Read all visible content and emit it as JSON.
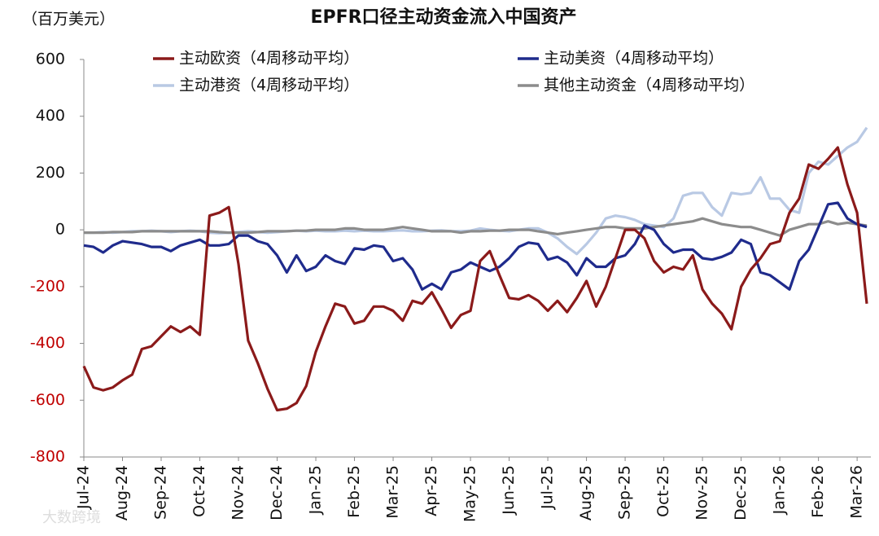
{
  "chart_data": {
    "type": "line",
    "title": "EPFR口径主动资金流入中国资产",
    "ylabel": "（百万美元）",
    "watermark": "大数跨境",
    "categories": [
      "Jul-24",
      null,
      null,
      null,
      "Aug-24",
      null,
      null,
      null,
      "Sep-24",
      null,
      null,
      null,
      "Oct-24",
      null,
      null,
      null,
      "Nov-24",
      null,
      null,
      null,
      "Dec-24",
      null,
      null,
      null,
      "Jan-25",
      null,
      null,
      null,
      "Feb-25",
      null,
      null,
      null,
      "Mar-25",
      null,
      null,
      null,
      "Apr-25",
      null,
      null,
      null,
      "May-25",
      null,
      null,
      null,
      "Jun-25",
      null,
      null,
      null,
      "Jul-25",
      null,
      null,
      null,
      "Aug-25",
      null,
      null,
      null,
      "Sep-25",
      null,
      null,
      null,
      "Oct-25",
      null,
      null,
      null,
      "Nov-25",
      null,
      null,
      null,
      "Dec-25",
      null,
      null,
      null,
      "Jan-26",
      null,
      null,
      null,
      "Feb-26",
      null,
      null,
      null,
      "Mar-26",
      null
    ],
    "series": [
      {
        "name": "主动欧资（4周移动平均）",
        "color": "#8b1a1a",
        "values": [
          -480,
          -555,
          -565,
          -555,
          -530,
          -510,
          -420,
          -410,
          -375,
          -340,
          -360,
          -340,
          -370,
          50,
          60,
          80,
          -120,
          -390,
          -470,
          -560,
          -635,
          -630,
          -610,
          -550,
          -430,
          -340,
          -260,
          -270,
          -330,
          -320,
          -270,
          -270,
          -285,
          -320,
          -250,
          -260,
          -220,
          -280,
          -345,
          -300,
          -285,
          -110,
          -75,
          -160,
          -240,
          -245,
          -230,
          -250,
          -285,
          -250,
          -290,
          -240,
          -180,
          -270,
          -200,
          -100,
          0,
          0,
          -30,
          -110,
          -150,
          -130,
          -140,
          -90,
          -210,
          -260,
          -295,
          -350,
          -200,
          -140,
          -100,
          -50,
          -40,
          60,
          110,
          230,
          215,
          250,
          290,
          160,
          60,
          -260
        ]
      },
      {
        "name": "主动美资（4周移动平均）",
        "color": "#1f2b8c",
        "values": [
          -55,
          -60,
          -80,
          -55,
          -40,
          -45,
          -50,
          -60,
          -60,
          -75,
          -55,
          -45,
          -35,
          -55,
          -55,
          -50,
          -20,
          -20,
          -40,
          -50,
          -90,
          -150,
          -90,
          -145,
          -130,
          -90,
          -110,
          -120,
          -65,
          -70,
          -55,
          -60,
          -110,
          -100,
          -140,
          -210,
          -190,
          -210,
          -150,
          -140,
          -115,
          -130,
          -145,
          -130,
          -100,
          -60,
          -45,
          -50,
          -105,
          -95,
          -115,
          -160,
          -100,
          -130,
          -130,
          -100,
          -90,
          -50,
          15,
          0,
          -50,
          -80,
          -70,
          -70,
          -100,
          -105,
          -95,
          -80,
          -35,
          -50,
          -150,
          -160,
          -185,
          -210,
          -110,
          -70,
          10,
          90,
          95,
          40,
          20,
          10
        ]
      },
      {
        "name": "主动港资（4周移动平均）",
        "color": "#b9c9e4",
        "values": [
          -10,
          -10,
          -8,
          -10,
          -8,
          -5,
          -5,
          -3,
          -5,
          -8,
          -5,
          -3,
          -5,
          -10,
          -12,
          -10,
          -8,
          -5,
          -8,
          -10,
          -8,
          -5,
          -3,
          -5,
          -3,
          -5,
          -5,
          -3,
          -5,
          -3,
          -5,
          -5,
          -3,
          -2,
          -5,
          -5,
          -3,
          -2,
          -5,
          -5,
          -3,
          5,
          0,
          -3,
          -5,
          0,
          5,
          5,
          -10,
          -30,
          -60,
          -85,
          -50,
          -10,
          40,
          50,
          45,
          35,
          20,
          15,
          10,
          40,
          120,
          130,
          130,
          80,
          50,
          130,
          125,
          130,
          185,
          110,
          110,
          70,
          60,
          200,
          240,
          230,
          260,
          290,
          310,
          360
        ]
      },
      {
        "name": "其他主动资金（4周移动平均）",
        "color": "#8c8c8c",
        "values": [
          -10,
          -10,
          -10,
          -8,
          -8,
          -8,
          -5,
          -5,
          -5,
          -5,
          -5,
          -5,
          -5,
          -5,
          -8,
          -10,
          -10,
          -10,
          -8,
          -5,
          -5,
          -5,
          -3,
          -3,
          0,
          0,
          0,
          5,
          5,
          0,
          0,
          0,
          5,
          10,
          5,
          0,
          -5,
          -5,
          -5,
          -10,
          -5,
          -5,
          -3,
          -3,
          0,
          0,
          0,
          -5,
          -10,
          -15,
          -10,
          -5,
          0,
          5,
          10,
          10,
          5,
          5,
          5,
          10,
          15,
          20,
          25,
          30,
          40,
          30,
          20,
          15,
          10,
          10,
          0,
          -10,
          -20,
          0,
          10,
          20,
          20,
          30,
          20,
          25,
          20,
          15
        ]
      }
    ],
    "ylim": [
      -800,
      600
    ],
    "yticks": [
      -800,
      -600,
      -400,
      -200,
      0,
      200,
      400,
      600
    ],
    "negative_tick_color": "#c00000",
    "grid": false
  }
}
